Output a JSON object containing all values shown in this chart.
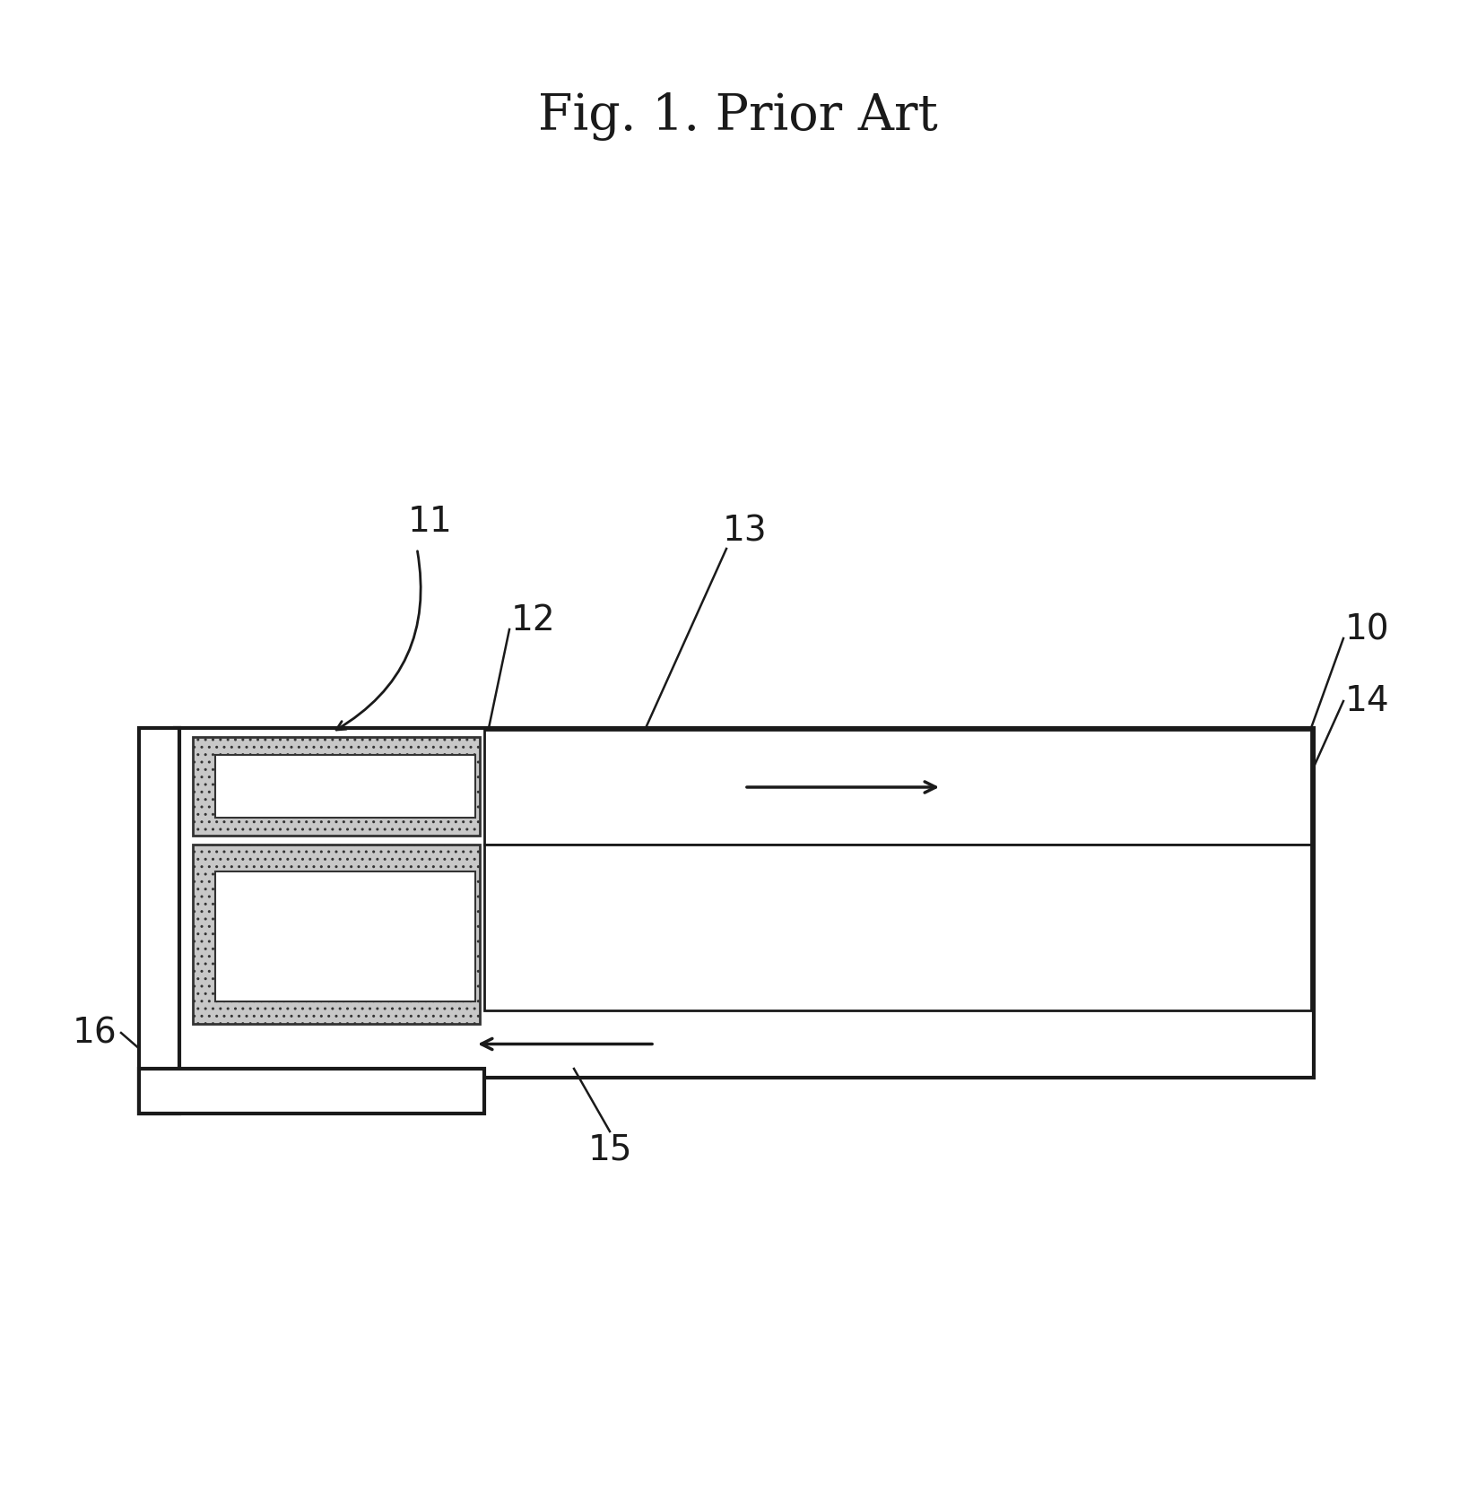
{
  "title": "Fig. 1. Prior Art",
  "title_fontsize": 40,
  "background_color": "#ffffff",
  "line_color": "#1a1a1a",
  "porous_color": "#c8c8c8",
  "label_fontsize": 28,
  "lw_main": 3.0,
  "lw_inner": 2.0
}
